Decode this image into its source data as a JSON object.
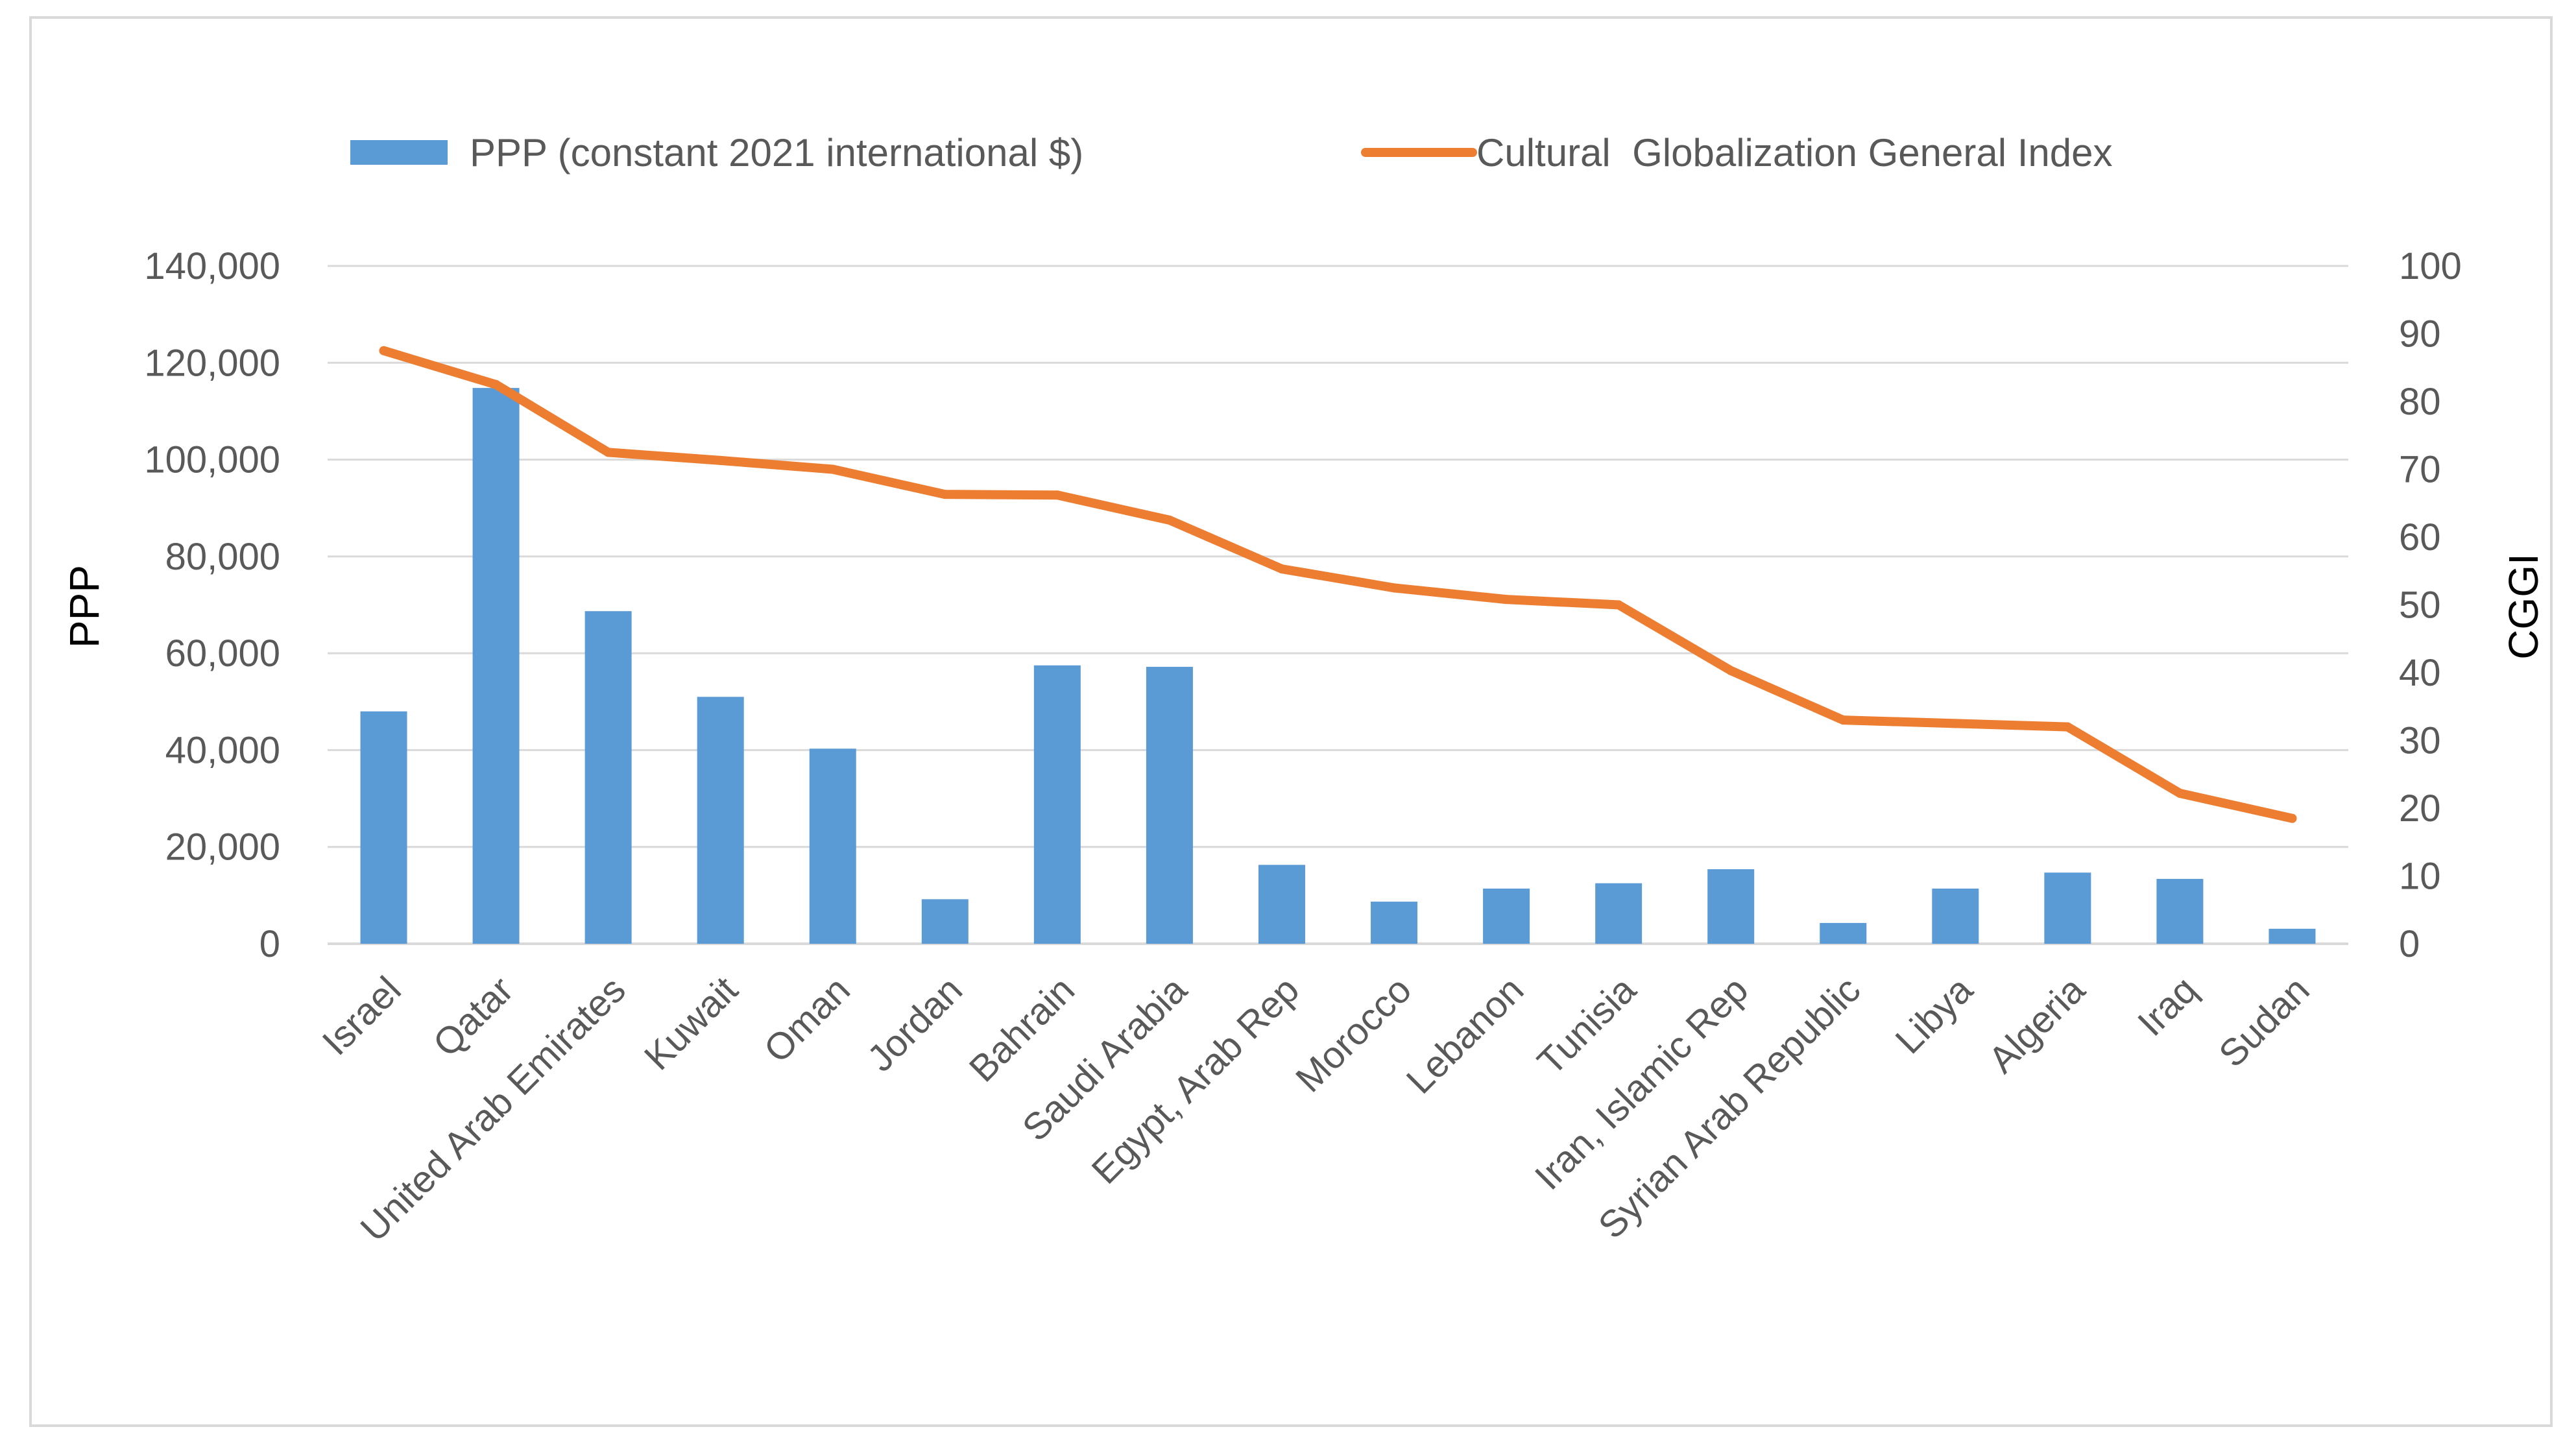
{
  "chart_data": {
    "type": "bar+line",
    "categories": [
      "Israel",
      "Qatar",
      "United Arab Emirates",
      "Kuwait",
      "Oman",
      "Jordan",
      "Bahrain",
      "Saudi Arabia",
      "Egypt, Arab Rep",
      "Morocco",
      "Lebanon",
      "Tunisia",
      "Iran, Islamic Rep",
      "Syrian Arab Republic",
      "Libya",
      "Algeria",
      "Iraq",
      "Sudan"
    ],
    "series": [
      {
        "name": "PPP (constant 2021 international $)",
        "type": "bar",
        "axis": "left",
        "color": "#5b9bd5",
        "values": [
          48000,
          114800,
          68700,
          51000,
          40300,
          9200,
          57500,
          57200,
          16300,
          8700,
          11400,
          12500,
          15400,
          4300,
          11400,
          14700,
          13400,
          3100
        ]
      },
      {
        "name": "Cultural  Globalization General Index",
        "type": "line",
        "axis": "right",
        "color": "#ed7d31",
        "values": [
          87.5,
          82.5,
          72.5,
          71.3,
          70,
          66.3,
          66.2,
          62.5,
          55.3,
          52.5,
          50.8,
          50,
          40.3,
          33,
          32.5,
          32,
          22.2,
          18.5
        ]
      }
    ],
    "y_left": {
      "label": "PPP",
      "lim": [
        0,
        140000
      ],
      "ticks": [
        0,
        20000,
        40000,
        60000,
        80000,
        100000,
        120000,
        140000
      ],
      "tick_labels": [
        "0",
        "20,000",
        "40,000",
        "60,000",
        "80,000",
        "100,000",
        "120,000",
        "140,000"
      ]
    },
    "y_right": {
      "label": "CGGI",
      "lim": [
        0,
        100
      ],
      "ticks": [
        0,
        10,
        20,
        30,
        40,
        50,
        60,
        70,
        80,
        90,
        100
      ],
      "tick_labels": [
        "0",
        "10",
        "20",
        "30",
        "40",
        "50",
        "60",
        "70",
        "80",
        "90",
        "100"
      ]
    },
    "grid": true,
    "legend_position": "top",
    "colors": {
      "gridline": "#d9d9d9",
      "axis": "#d9d9d9",
      "text": "#595959"
    }
  }
}
